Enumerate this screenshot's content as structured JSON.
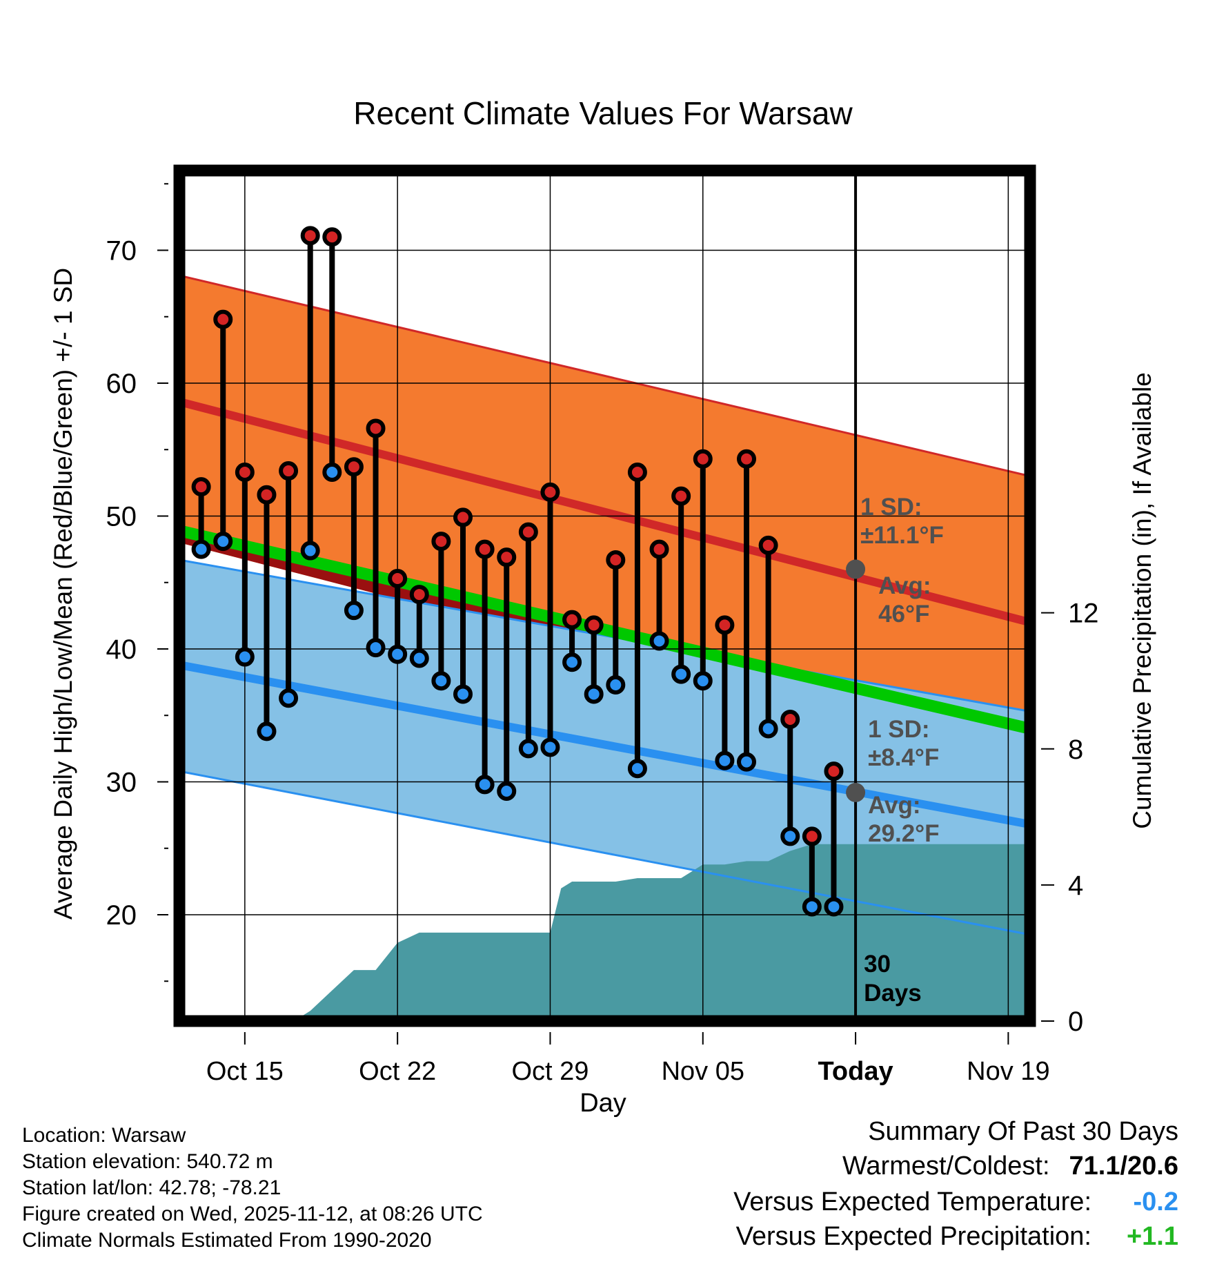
{
  "chart_data": {
    "type": "line",
    "title": "Recent Climate Values For Warsaw",
    "xlabel": "Day",
    "ylabel": "Average Daily High/Low/Mean (Red/Blue/Green) +/- 1 SD",
    "y2label": "Cumulative Precipitation (in), If Available",
    "xlim": [
      -2,
      37
    ],
    "ylim": [
      12,
      76
    ],
    "y2lim": [
      0,
      25
    ],
    "x_tick_labels": [
      {
        "x": 1,
        "label": "Oct 15"
      },
      {
        "x": 8,
        "label": "Oct 22"
      },
      {
        "x": 15,
        "label": "Oct 29"
      },
      {
        "x": 22,
        "label": "Nov 05"
      },
      {
        "x": 29,
        "label": "Today"
      },
      {
        "x": 36,
        "label": "Nov 19"
      }
    ],
    "y_ticks": [
      20,
      30,
      40,
      50,
      60,
      70
    ],
    "y2_ticks": [
      0,
      4,
      8,
      12
    ],
    "normals": {
      "x": [
        -2,
        37
      ],
      "high_avg": [
        58.6,
        42.0
      ],
      "high_plus_sd": [
        68.1,
        53.0
      ],
      "high_minus_sd": [
        48.0,
        31.4
      ],
      "low_avg": [
        38.8,
        26.8
      ],
      "low_plus_sd": [
        46.7,
        35.3
      ],
      "low_minus_sd": [
        30.8,
        18.5
      ],
      "mean_avg": [
        48.9,
        34.0
      ]
    },
    "daily": {
      "x": [
        -1,
        0,
        1,
        2,
        3,
        4,
        5,
        6,
        7,
        8,
        9,
        10,
        11,
        12,
        13,
        14,
        15,
        16,
        17,
        18,
        19,
        20,
        21,
        22,
        23,
        24,
        25,
        26,
        27,
        28
      ],
      "high": [
        52.2,
        64.8,
        53.3,
        51.6,
        53.4,
        71.1,
        71.0,
        53.7,
        56.6,
        45.3,
        44.1,
        48.1,
        49.9,
        47.5,
        46.9,
        48.8,
        51.8,
        42.2,
        41.8,
        46.7,
        53.3,
        47.5,
        51.5,
        54.3,
        41.8,
        54.3,
        47.8,
        34.7,
        25.9,
        30.8
      ],
      "low": [
        47.5,
        48.1,
        39.4,
        33.8,
        36.3,
        47.4,
        53.3,
        42.9,
        40.1,
        39.6,
        39.3,
        37.6,
        36.6,
        29.8,
        29.3,
        32.5,
        32.6,
        39.0,
        36.6,
        37.3,
        31.0,
        40.6,
        38.1,
        37.6,
        31.6,
        31.5,
        34.0,
        25.9,
        20.6,
        20.6
      ]
    },
    "precipitation": {
      "x": [
        -2,
        3,
        3.5,
        4,
        5,
        6,
        7,
        8,
        9,
        10,
        11,
        12,
        13,
        14,
        15,
        15.5,
        16,
        17,
        18,
        19,
        20,
        21,
        22,
        22.5,
        23,
        24,
        25,
        26,
        27,
        28,
        37
      ],
      "cumulative": [
        0,
        0,
        0.1,
        0.3,
        0.9,
        1.5,
        1.5,
        2.3,
        2.6,
        2.6,
        2.6,
        2.6,
        2.6,
        2.6,
        2.6,
        3.9,
        4.1,
        4.1,
        4.1,
        4.2,
        4.2,
        4.2,
        4.6,
        4.6,
        4.6,
        4.7,
        4.7,
        5.0,
        5.2,
        5.2,
        5.2
      ]
    },
    "annotations": {
      "high_sd_label": [
        "1 SD:",
        "±11.1°F"
      ],
      "high_avg_label": [
        "Avg:",
        "46°F"
      ],
      "high_avg_value": 46,
      "low_sd_label": [
        "1 SD:",
        "±8.4°F"
      ],
      "low_avg_label": [
        "Avg:",
        "29.2°F"
      ],
      "low_avg_value": 29.2,
      "days_label": [
        "30",
        "Days"
      ]
    },
    "colors": {
      "high_band": "#f47a2f",
      "high_line": "#d02828",
      "low_band": "#85c1e6",
      "low_line": "#2a90f0",
      "mean_line": "#00c800",
      "overlap": "#9a1010",
      "precip": "#4a9aa2",
      "high_dot": "#d42424",
      "low_dot": "#2a90f0",
      "annotation": "#505050"
    }
  },
  "info": {
    "location": "Location: Warsaw",
    "elevation": "Station elevation: 540.72 m",
    "latlon": "Station lat/lon: 42.78; -78.21",
    "created": "Figure created on Wed, 2025-11-12, at 08:26 UTC",
    "normals": "Climate Normals Estimated From 1990-2020"
  },
  "summary": {
    "title": "Summary Of Past 30 Days",
    "warm_cold_label": "Warmest/Coldest:",
    "warm_cold_value": "71.1/20.6",
    "temp_label": "Versus Expected Temperature:",
    "temp_value": "-0.2",
    "temp_color": "#2a90f0",
    "precip_label": "Versus Expected Precipitation:",
    "precip_value": "+1.1",
    "precip_color": "#22b822"
  }
}
